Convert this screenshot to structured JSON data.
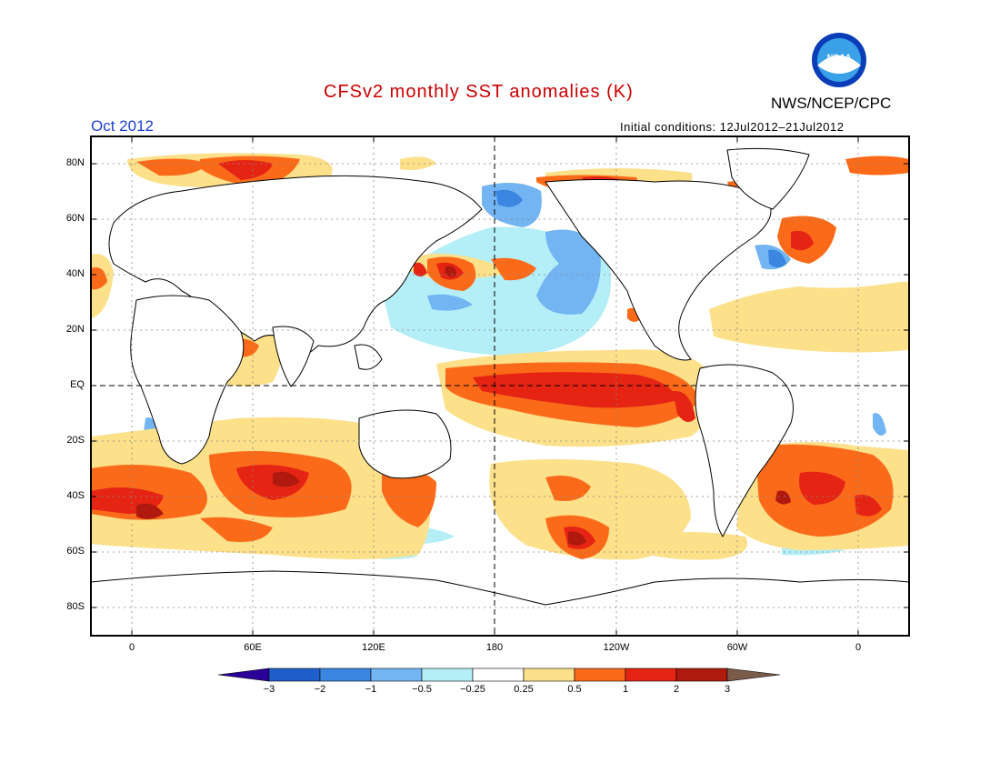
{
  "header": {
    "title": "CFSv2 monthly SST anomalies (K)",
    "organization": "NWS/NCEP/CPC",
    "logo_text": "NOAA",
    "valid_month": "Oct 2012",
    "initial_conditions": "Initial conditions: 12Jul2012–21Jul2012"
  },
  "map": {
    "lat_labels": [
      "80N",
      "60N",
      "40N",
      "20N",
      "EQ",
      "20S",
      "40S",
      "60S",
      "80S"
    ],
    "lon_labels": [
      "0",
      "60E",
      "120E",
      "180",
      "120W",
      "60W",
      "0"
    ],
    "grid": "dotted",
    "reference_lines": [
      "EQ",
      "180"
    ]
  },
  "colorbar": {
    "labels": [
      "−3",
      "−2",
      "−1",
      "−0.5",
      "−0.25",
      "0.25",
      "0.5",
      "1",
      "2",
      "3"
    ],
    "colors": [
      "#2a0099",
      "#1f5fcc",
      "#3a86e0",
      "#72b5f2",
      "#b4eef7",
      "#ffffff",
      "#fde08a",
      "#fb6a19",
      "#e52414",
      "#b01a0e",
      "#7a5a48"
    ]
  }
}
